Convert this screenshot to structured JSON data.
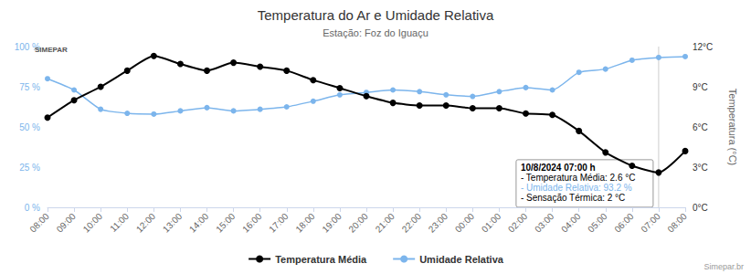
{
  "chart_data": {
    "type": "line",
    "title": "Temperatura do Ar e Umidade Relativa",
    "subtitle": "Estação: Foz do Iguaçu",
    "categories": [
      "08:00",
      "09:00",
      "10:00",
      "11:00",
      "12:00",
      "13:00",
      "14:00",
      "15:00",
      "16:00",
      "17:00",
      "18:00",
      "19:00",
      "20:00",
      "21:00",
      "22:00",
      "23:00",
      "00:00",
      "01:00",
      "02:00",
      "03:00",
      "04:00",
      "05:00",
      "06:00",
      "07:00",
      "08:00"
    ],
    "series": [
      {
        "name": "Temperatura Média",
        "color": "#000000",
        "marker": "circle",
        "axis": "y2",
        "values": [
          6.7,
          8.0,
          9.0,
          10.2,
          11.3,
          10.7,
          10.2,
          10.8,
          10.5,
          10.2,
          9.5,
          8.9,
          8.3,
          7.8,
          7.6,
          7.6,
          7.4,
          7.4,
          7.0,
          6.9,
          5.7,
          4.1,
          3.1,
          2.6,
          4.2
        ]
      },
      {
        "name": "Umidade Relativa",
        "color": "#7cb5ec",
        "marker": "circle",
        "values": [
          80,
          73,
          61,
          58.5,
          58,
          60,
          62,
          60,
          61,
          62.5,
          66,
          70,
          71.5,
          73,
          72,
          70,
          69,
          72,
          74.5,
          73,
          84,
          86,
          91.5,
          93.2,
          93.8
        ]
      }
    ],
    "ylim": [
      0,
      100
    ],
    "yticks": [
      {
        "value": 0,
        "label": "0 %"
      },
      {
        "value": 25,
        "label": "25 %"
      },
      {
        "value": 50,
        "label": "50 %"
      },
      {
        "value": 75,
        "label": "75 %"
      },
      {
        "value": 100,
        "label": "100 %"
      }
    ],
    "y2lim": [
      0,
      12
    ],
    "y2ticks": [
      {
        "value": 0,
        "label": "0°C"
      },
      {
        "value": 3,
        "label": "3°C"
      },
      {
        "value": 6,
        "label": "6°C"
      },
      {
        "value": 9,
        "label": "9°C"
      },
      {
        "value": 12,
        "label": "12°C"
      }
    ],
    "y2label": "Temperatura (°C)",
    "grid": false,
    "legend": "bottom",
    "annotation": {
      "at": "07:00",
      "series": "Temperatura Média",
      "lines": [
        {
          "text": "10/8/2024 07:00 h",
          "color": "#000000"
        },
        {
          "text": "- Temperatura Média: 2.6 °C",
          "color": "#000000"
        },
        {
          "text": "- Umidade Relativa: 93.2 %",
          "color": "#7cb5ec"
        },
        {
          "text": "- Sensação Térmica: 2 °C",
          "color": "#000000"
        }
      ]
    },
    "logo": "SIMEPAR",
    "credits": "Simepar.br"
  }
}
